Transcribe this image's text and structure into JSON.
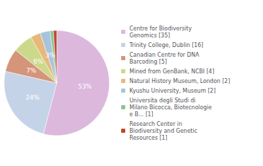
{
  "chart_data": {
    "type": "pie",
    "categories": [
      "Centre for Biodiversity\nGenomics [35]",
      "Trinity College, Dublin [16]",
      "Canadian Centre for DNA\nBarcoding [5]",
      "Mined from GenBank, NCBI [4]",
      "Natural History Museum, London [2]",
      "Kyushu University, Museum [2]",
      "Universita degli Studi di\nMilano Bicocca, Biotecnologie\ne B... [1]",
      "Research Center in\nBiodiversity and Genetic\nResources [1]"
    ],
    "values": [
      53,
      24,
      7,
      6,
      3,
      3,
      1,
      1
    ],
    "value_labels": [
      "53%",
      "24%",
      "7%",
      "6%",
      "3%",
      "3%",
      null,
      null
    ],
    "colors": [
      "#dcb8dc",
      "#c5d3e8",
      "#d4957a",
      "#cdd98a",
      "#e8b87a",
      "#a8c4dc",
      "#8ec48e",
      "#c04830"
    ],
    "data_labels": true,
    "legend": "right"
  }
}
